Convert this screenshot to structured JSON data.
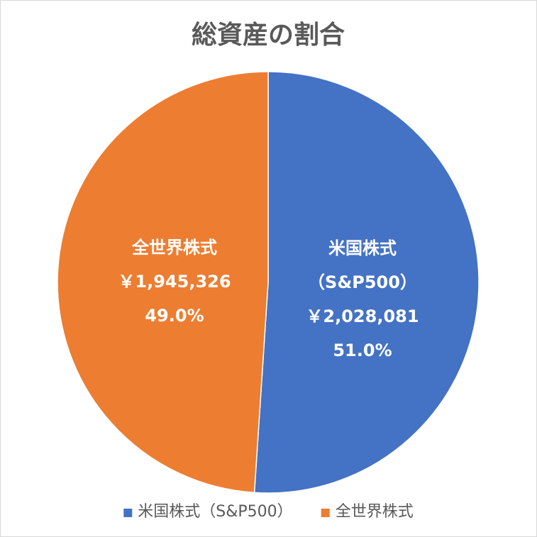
{
  "chart_data": {
    "type": "pie",
    "title": "総資産の割合",
    "start_angle_deg": 0,
    "direction": "clockwise",
    "legend_position": "bottom",
    "slices": [
      {
        "name": "米国株式（S&P500）",
        "label_lines": [
          "米国株式",
          "（S&P500）",
          "￥2,028,081",
          "51.0%"
        ],
        "value": 2028081,
        "percent": 51.0,
        "color": "#4472C4"
      },
      {
        "name": "全世界株式",
        "label_lines": [
          "全世界株式",
          "￥1,945,326",
          "49.0%"
        ],
        "value": 1945326,
        "percent": 49.0,
        "color": "#ED7D31"
      }
    ]
  }
}
